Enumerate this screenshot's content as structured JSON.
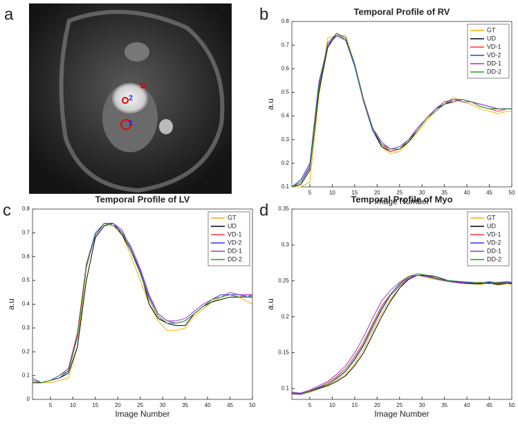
{
  "image_panel": {
    "panel_label": "a",
    "markers": [
      "2",
      "1"
    ]
  },
  "chart_data": [
    {
      "type": "line",
      "panel_label": "b",
      "title": "Temporal Profile of RV",
      "xlabel": "Image Number",
      "ylabel": "a.u",
      "x": [
        1,
        3,
        5,
        7,
        9,
        11,
        13,
        15,
        17,
        19,
        21,
        23,
        25,
        27,
        29,
        31,
        33,
        35,
        37,
        39,
        41,
        43,
        45,
        47,
        49,
        50
      ],
      "xlim": [
        1,
        50
      ],
      "xticks": [
        5,
        10,
        15,
        20,
        25,
        30,
        35,
        40,
        45,
        50
      ],
      "ylim": [
        0.1,
        0.8
      ],
      "yticks": [
        0.1,
        0.2,
        0.3,
        0.4,
        0.5,
        0.6,
        0.7,
        0.8
      ],
      "legend": "upper-right",
      "series": [
        {
          "name": "GT",
          "color": "#f0b000",
          "values": [
            0.1,
            0.1,
            0.12,
            0.48,
            0.73,
            0.74,
            0.74,
            0.62,
            0.47,
            0.35,
            0.27,
            0.24,
            0.25,
            0.29,
            0.33,
            0.38,
            0.42,
            0.45,
            0.48,
            0.46,
            0.45,
            0.43,
            0.42,
            0.41,
            0.42,
            0.42
          ]
        },
        {
          "name": "UD",
          "color": "#000000",
          "values": [
            0.1,
            0.11,
            0.17,
            0.5,
            0.69,
            0.75,
            0.73,
            0.61,
            0.46,
            0.34,
            0.27,
            0.25,
            0.26,
            0.29,
            0.34,
            0.39,
            0.43,
            0.45,
            0.46,
            0.47,
            0.46,
            0.44,
            0.43,
            0.43,
            0.43,
            0.43
          ]
        },
        {
          "name": "VD-1",
          "color": "#ff3030",
          "values": [
            0.1,
            0.12,
            0.18,
            0.52,
            0.7,
            0.75,
            0.72,
            0.62,
            0.47,
            0.35,
            0.28,
            0.25,
            0.26,
            0.3,
            0.34,
            0.39,
            0.43,
            0.46,
            0.46,
            0.47,
            0.46,
            0.44,
            0.43,
            0.42,
            0.43,
            0.43
          ]
        },
        {
          "name": "VD-2",
          "color": "#3030ff",
          "values": [
            0.1,
            0.13,
            0.2,
            0.54,
            0.7,
            0.74,
            0.72,
            0.61,
            0.46,
            0.34,
            0.28,
            0.26,
            0.26,
            0.3,
            0.34,
            0.39,
            0.42,
            0.45,
            0.47,
            0.47,
            0.46,
            0.45,
            0.44,
            0.43,
            0.43,
            0.43
          ]
        },
        {
          "name": "DD-1",
          "color": "#a030d0",
          "values": [
            0.1,
            0.12,
            0.19,
            0.53,
            0.7,
            0.75,
            0.73,
            0.62,
            0.47,
            0.35,
            0.29,
            0.26,
            0.27,
            0.3,
            0.35,
            0.39,
            0.43,
            0.46,
            0.47,
            0.46,
            0.46,
            0.45,
            0.44,
            0.43,
            0.43,
            0.43
          ]
        },
        {
          "name": "DD-2",
          "color": "#20a020",
          "values": [
            0.1,
            0.12,
            0.18,
            0.52,
            0.71,
            0.75,
            0.73,
            0.62,
            0.46,
            0.35,
            0.28,
            0.26,
            0.26,
            0.3,
            0.34,
            0.39,
            0.42,
            0.45,
            0.47,
            0.47,
            0.46,
            0.44,
            0.43,
            0.43,
            0.43,
            0.43
          ]
        }
      ]
    },
    {
      "type": "line",
      "panel_label": "c",
      "title": "Temporal Profile of LV",
      "xlabel": "Image Number",
      "ylabel": "a.u",
      "x": [
        1,
        3,
        5,
        7,
        9,
        11,
        13,
        15,
        17,
        19,
        21,
        23,
        25,
        27,
        29,
        31,
        33,
        35,
        37,
        39,
        41,
        43,
        45,
        47,
        49,
        50
      ],
      "xlim": [
        1,
        50
      ],
      "xticks": [
        5,
        10,
        15,
        20,
        25,
        30,
        35,
        40,
        45,
        50
      ],
      "ylim": [
        0,
        0.8
      ],
      "yticks": [
        0,
        0.1,
        0.2,
        0.3,
        0.4,
        0.5,
        0.6,
        0.7,
        0.8
      ],
      "legend": "upper-right",
      "series": [
        {
          "name": "GT",
          "color": "#f0b000",
          "values": [
            0.07,
            0.07,
            0.07,
            0.08,
            0.09,
            0.22,
            0.55,
            0.7,
            0.74,
            0.73,
            0.69,
            0.6,
            0.5,
            0.4,
            0.33,
            0.29,
            0.29,
            0.3,
            0.35,
            0.38,
            0.41,
            0.43,
            0.44,
            0.43,
            0.41,
            0.4
          ]
        },
        {
          "name": "UD",
          "color": "#000000",
          "values": [
            0.07,
            0.07,
            0.08,
            0.09,
            0.11,
            0.22,
            0.5,
            0.68,
            0.73,
            0.74,
            0.69,
            0.62,
            0.54,
            0.4,
            0.34,
            0.32,
            0.31,
            0.31,
            0.36,
            0.39,
            0.41,
            0.42,
            0.43,
            0.43,
            0.43,
            0.43
          ]
        },
        {
          "name": "VD-1",
          "color": "#ff3030",
          "values": [
            0.08,
            0.07,
            0.08,
            0.1,
            0.13,
            0.28,
            0.57,
            0.69,
            0.74,
            0.73,
            0.7,
            0.62,
            0.53,
            0.42,
            0.35,
            0.32,
            0.32,
            0.33,
            0.36,
            0.39,
            0.42,
            0.43,
            0.44,
            0.43,
            0.44,
            0.43
          ]
        },
        {
          "name": "VD-2",
          "color": "#3030ff",
          "values": [
            0.08,
            0.07,
            0.08,
            0.09,
            0.12,
            0.26,
            0.56,
            0.69,
            0.74,
            0.74,
            0.71,
            0.63,
            0.54,
            0.43,
            0.36,
            0.33,
            0.32,
            0.33,
            0.36,
            0.39,
            0.42,
            0.44,
            0.44,
            0.44,
            0.43,
            0.44
          ]
        },
        {
          "name": "DD-1",
          "color": "#a030d0",
          "values": [
            0.09,
            0.07,
            0.08,
            0.1,
            0.13,
            0.27,
            0.57,
            0.7,
            0.74,
            0.74,
            0.7,
            0.64,
            0.55,
            0.44,
            0.36,
            0.33,
            0.33,
            0.34,
            0.37,
            0.4,
            0.42,
            0.43,
            0.45,
            0.44,
            0.44,
            0.44
          ]
        },
        {
          "name": "DD-2",
          "color": "#20a020",
          "values": [
            0.08,
            0.07,
            0.08,
            0.1,
            0.12,
            0.26,
            0.56,
            0.7,
            0.74,
            0.73,
            0.7,
            0.62,
            0.53,
            0.42,
            0.35,
            0.32,
            0.32,
            0.33,
            0.36,
            0.39,
            0.42,
            0.43,
            0.44,
            0.43,
            0.43,
            0.43
          ]
        }
      ]
    },
    {
      "type": "line",
      "panel_label": "d",
      "title": "Temporal Profile of Myo",
      "xlabel": "Image Number",
      "ylabel": "a.u",
      "x": [
        1,
        3,
        5,
        7,
        9,
        11,
        13,
        15,
        17,
        19,
        21,
        23,
        25,
        27,
        29,
        31,
        33,
        35,
        37,
        39,
        41,
        43,
        45,
        47,
        49,
        50
      ],
      "xlim": [
        1,
        50
      ],
      "xticks": [
        5,
        10,
        15,
        20,
        25,
        30,
        35,
        40,
        45,
        50
      ],
      "ylim": [
        0.085,
        0.35
      ],
      "yticks": [
        0.1,
        0.15,
        0.2,
        0.25,
        0.3,
        0.35
      ],
      "legend": "upper-right",
      "series": [
        {
          "name": "GT",
          "color": "#f0b000",
          "values": [
            0.092,
            0.092,
            0.095,
            0.1,
            0.105,
            0.112,
            0.12,
            0.135,
            0.155,
            0.18,
            0.205,
            0.225,
            0.24,
            0.255,
            0.258,
            0.255,
            0.252,
            0.25,
            0.248,
            0.246,
            0.246,
            0.245,
            0.247,
            0.244,
            0.246,
            0.245
          ]
        },
        {
          "name": "UD",
          "color": "#000000",
          "values": [
            0.094,
            0.093,
            0.096,
            0.1,
            0.104,
            0.11,
            0.118,
            0.132,
            0.15,
            0.175,
            0.2,
            0.222,
            0.24,
            0.252,
            0.258,
            0.258,
            0.256,
            0.252,
            0.248,
            0.247,
            0.246,
            0.246,
            0.247,
            0.245,
            0.247,
            0.246
          ]
        },
        {
          "name": "VD-1",
          "color": "#ff3030",
          "values": [
            0.095,
            0.093,
            0.097,
            0.102,
            0.108,
            0.117,
            0.128,
            0.145,
            0.165,
            0.19,
            0.215,
            0.232,
            0.245,
            0.255,
            0.258,
            0.256,
            0.253,
            0.25,
            0.249,
            0.248,
            0.247,
            0.248,
            0.246,
            0.248,
            0.249,
            0.248
          ]
        },
        {
          "name": "VD-2",
          "color": "#3030ff",
          "values": [
            0.093,
            0.092,
            0.096,
            0.102,
            0.106,
            0.114,
            0.124,
            0.14,
            0.16,
            0.185,
            0.21,
            0.23,
            0.243,
            0.253,
            0.258,
            0.257,
            0.254,
            0.251,
            0.249,
            0.248,
            0.247,
            0.247,
            0.248,
            0.246,
            0.248,
            0.247
          ]
        },
        {
          "name": "DD-1",
          "color": "#a030d0",
          "values": [
            0.095,
            0.094,
            0.098,
            0.104,
            0.11,
            0.12,
            0.132,
            0.15,
            0.172,
            0.198,
            0.222,
            0.237,
            0.248,
            0.256,
            0.258,
            0.256,
            0.253,
            0.25,
            0.248,
            0.247,
            0.248,
            0.247,
            0.246,
            0.248,
            0.247,
            0.248
          ]
        },
        {
          "name": "DD-2",
          "color": "#20a020",
          "values": [
            0.094,
            0.093,
            0.096,
            0.101,
            0.106,
            0.115,
            0.125,
            0.142,
            0.162,
            0.188,
            0.212,
            0.232,
            0.246,
            0.256,
            0.26,
            0.258,
            0.254,
            0.251,
            0.25,
            0.249,
            0.248,
            0.247,
            0.249,
            0.247,
            0.249,
            0.248
          ]
        }
      ]
    }
  ]
}
